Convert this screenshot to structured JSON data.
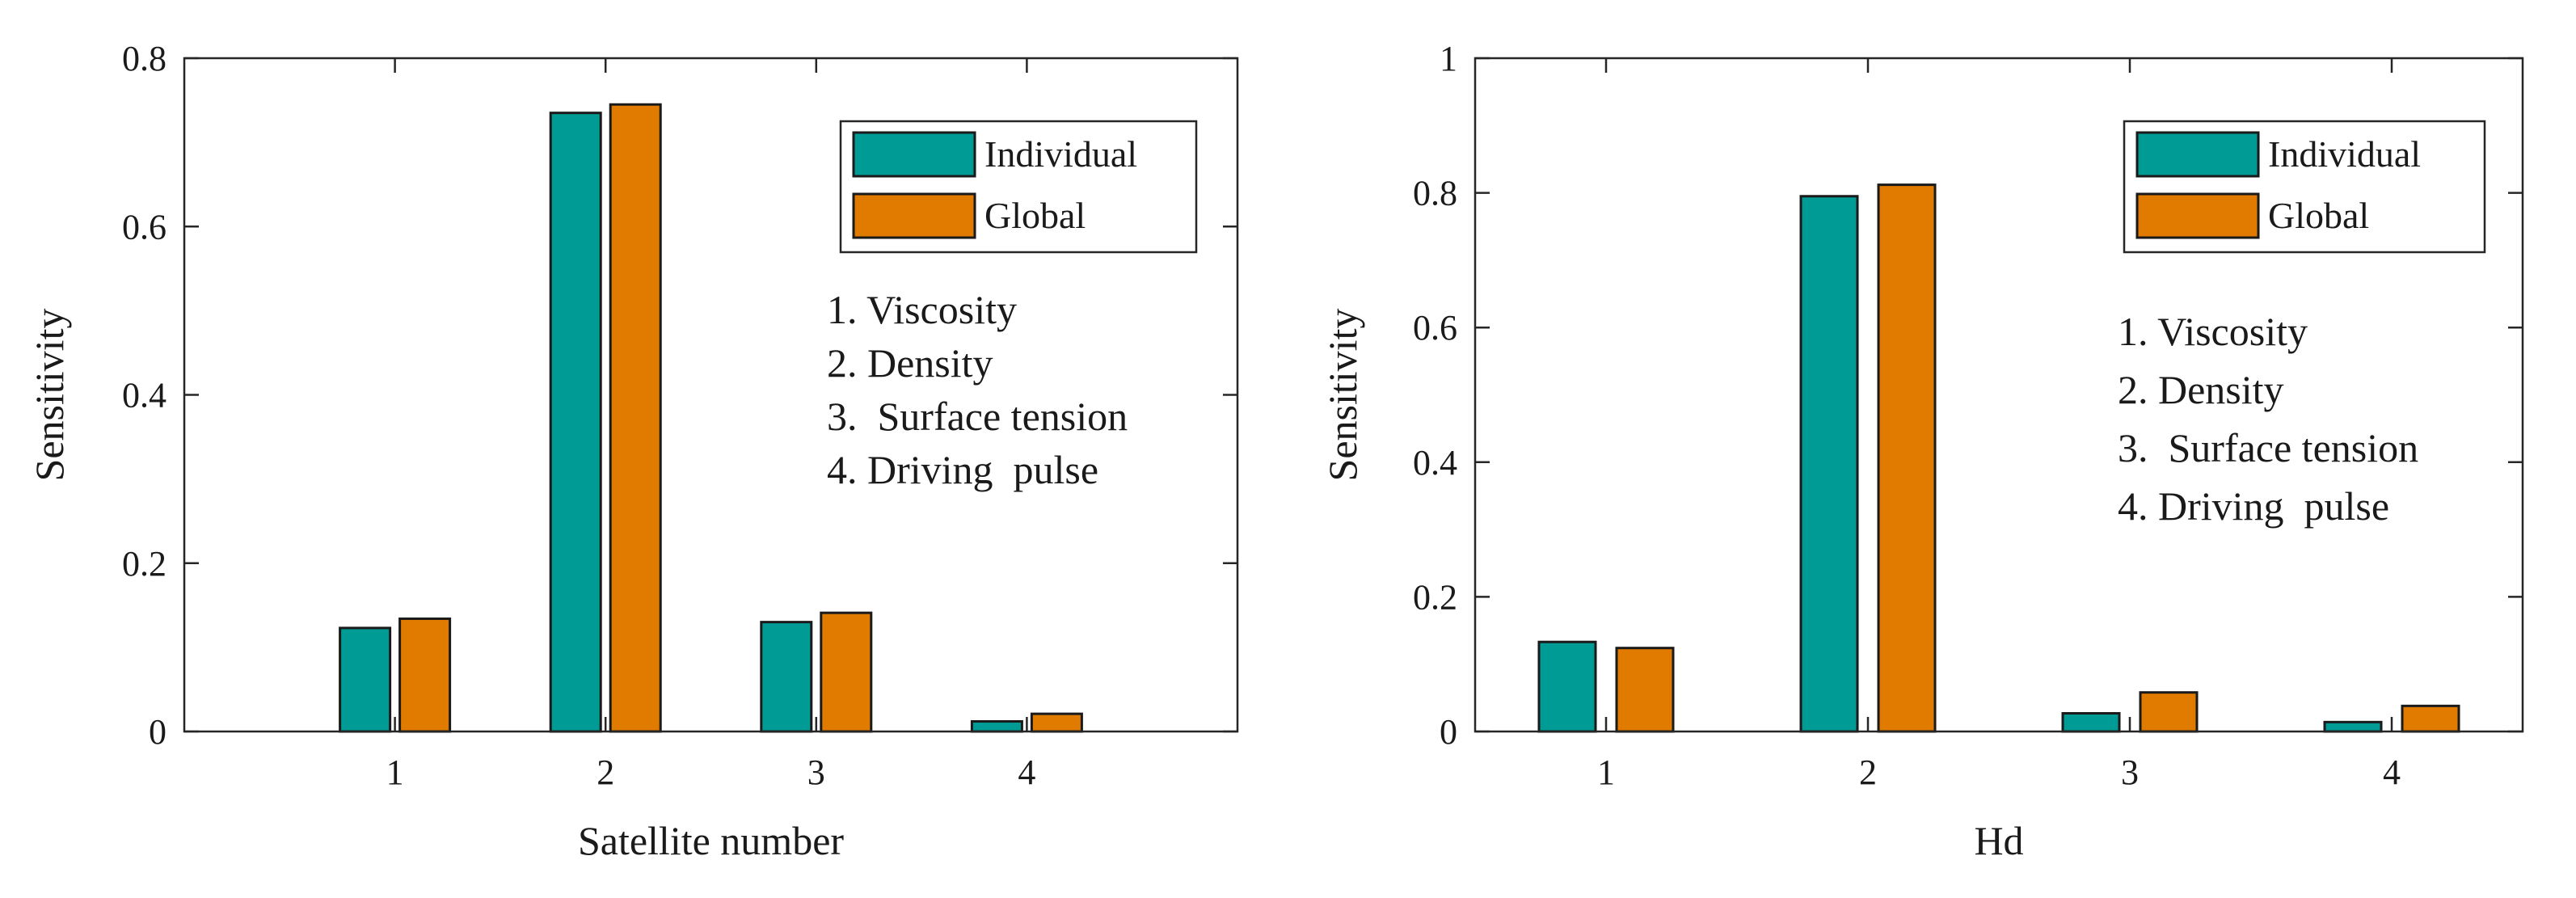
{
  "chart_data": [
    {
      "type": "bar",
      "title": "",
      "xlabel": "Satellite number",
      "ylabel": "Sensitivity",
      "categories": [
        "1",
        "2",
        "3",
        "4"
      ],
      "xlim": [
        0,
        5
      ],
      "ylim": [
        0,
        0.8
      ],
      "yticks": [
        "0",
        "0.2",
        "0.4",
        "0.6",
        "0.8"
      ],
      "ytick_values": [
        0,
        0.2,
        0.4,
        0.6,
        0.8
      ],
      "grid": false,
      "legend_position": "top-right",
      "series": [
        {
          "name": "Individual",
          "color": "#009b95",
          "values": [
            0.123,
            0.735,
            0.13,
            0.012
          ]
        },
        {
          "name": "Global",
          "color": "#e07b00",
          "values": [
            0.134,
            0.745,
            0.141,
            0.021
          ]
        }
      ],
      "annotations": [
        "1. Viscosity",
        "2. Density",
        "3.  Surface tension",
        "4. Driving  pulse"
      ]
    },
    {
      "type": "bar",
      "title": "",
      "xlabel": "Hd",
      "ylabel": "Sensitivity",
      "categories": [
        "1",
        "2",
        "3",
        "4"
      ],
      "xlim": [
        0.5,
        4.5
      ],
      "ylim": [
        0,
        1
      ],
      "yticks": [
        "0",
        "0.2",
        "0.4",
        "0.6",
        "0.8",
        "1"
      ],
      "ytick_values": [
        0,
        0.2,
        0.4,
        0.6,
        0.8,
        1
      ],
      "grid": false,
      "legend_position": "top-right",
      "series": [
        {
          "name": "Individual",
          "color": "#009b95",
          "values": [
            0.133,
            0.795,
            0.027,
            0.014
          ]
        },
        {
          "name": "Global",
          "color": "#e07b00",
          "values": [
            0.124,
            0.812,
            0.058,
            0.038
          ]
        }
      ],
      "annotations": [
        "1. Viscosity",
        "2. Density",
        "3.  Surface tension",
        "4. Driving  pulse"
      ]
    }
  ]
}
